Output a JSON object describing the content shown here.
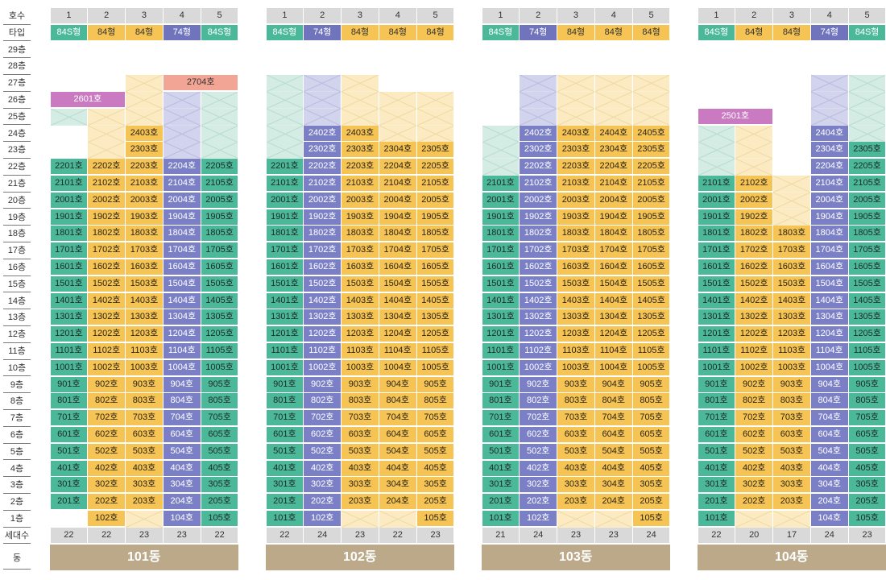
{
  "labels": {
    "header": "호수",
    "type": "타입",
    "floors": [
      "29층",
      "28층",
      "27층",
      "26층",
      "25층",
      "24층",
      "23층",
      "22층",
      "21층",
      "20층",
      "19층",
      "18층",
      "17층",
      "16층",
      "15층",
      "14층",
      "13층",
      "12층",
      "11층",
      "10층",
      "9층",
      "8층",
      "7층",
      "6층",
      "5층",
      "4층",
      "3층",
      "2층",
      "1층"
    ],
    "count": "세대수",
    "building": "동"
  },
  "colors": {
    "84S형": "#4cb89a",
    "84형": "#f6c454",
    "74형": "#6f74bc",
    "pink": "#c97ac1",
    "salmon": "#f2a594"
  },
  "units": [
    "1",
    "2",
    "3",
    "4",
    "5"
  ],
  "unit_suffix": "호",
  "buildings": [
    {
      "name": "101동",
      "types": [
        "84S형",
        "84형",
        "84형",
        "74형",
        "84S형"
      ],
      "counts": [
        "22",
        "22",
        "23",
        "23",
        "22"
      ],
      "columns": [
        {
          "top": 22,
          "bottom": 2,
          "void_from": 25,
          "void_to": 25,
          "special": [
            {
              "floor": 26,
              "text": "2601호",
              "color": "pink",
              "span": 2
            }
          ]
        },
        {
          "top": 22,
          "bottom": 1,
          "void_from": 23,
          "void_to": 25
        },
        {
          "top": 24,
          "bottom": 2,
          "void_from": 25,
          "void_to": 27,
          "void_bottom": [
            1
          ]
        },
        {
          "top": 22,
          "bottom": 1,
          "void_from": 23,
          "void_to": 26,
          "special": [
            {
              "floor": 27,
              "text": "2704호",
              "color": "salmon",
              "span": 2
            }
          ]
        },
        {
          "top": 22,
          "bottom": 1,
          "void_from": 23,
          "void_to": 26
        }
      ]
    },
    {
      "name": "102동",
      "types": [
        "84S형",
        "74형",
        "84형",
        "84형",
        "84형"
      ],
      "counts": [
        "22",
        "24",
        "23",
        "22",
        "23"
      ],
      "columns": [
        {
          "top": 22,
          "bottom": 1,
          "void_from": 23,
          "void_to": 27
        },
        {
          "top": 24,
          "bottom": 1,
          "void_from": 25,
          "void_to": 27
        },
        {
          "top": 24,
          "bottom": 2,
          "void_from": 25,
          "void_to": 27,
          "void_bottom": [
            1
          ]
        },
        {
          "top": 23,
          "bottom": 2,
          "void_from": 24,
          "void_to": 26,
          "void_bottom": [
            1
          ]
        },
        {
          "top": 23,
          "bottom": 1,
          "void_from": 24,
          "void_to": 26,
          "void_bottom": []
        }
      ]
    },
    {
      "name": "103동",
      "types": [
        "84S형",
        "74형",
        "84형",
        "84형",
        "84형"
      ],
      "counts": [
        "21",
        "24",
        "23",
        "23",
        "24"
      ],
      "columns": [
        {
          "top": 21,
          "bottom": 1,
          "void_from": 22,
          "void_to": 24
        },
        {
          "top": 24,
          "bottom": 1,
          "void_from": 25,
          "void_to": 27
        },
        {
          "top": 24,
          "bottom": 2,
          "void_from": 25,
          "void_to": 27,
          "void_bottom": [
            1
          ]
        },
        {
          "top": 24,
          "bottom": 2,
          "void_from": 25,
          "void_to": 27,
          "void_bottom": [
            1
          ]
        },
        {
          "top": 24,
          "bottom": 1,
          "void_from": 25,
          "void_to": 27
        }
      ]
    },
    {
      "name": "104동",
      "types": [
        "84S형",
        "84형",
        "84형",
        "74형",
        "84S형"
      ],
      "counts": [
        "22",
        "20",
        "17",
        "24",
        "23"
      ],
      "columns": [
        {
          "top": 21,
          "bottom": 1,
          "void_from": 22,
          "void_to": 24,
          "special": [
            {
              "floor": 25,
              "text": "2501호",
              "color": "pink",
              "span": 2
            }
          ]
        },
        {
          "top": 21,
          "bottom": 2,
          "void_from": 22,
          "void_to": 24,
          "void_bottom": [
            1
          ]
        },
        {
          "top": 18,
          "bottom": 2,
          "void_from": 19,
          "void_to": 21,
          "void_bottom": [
            1
          ]
        },
        {
          "top": 24,
          "bottom": 1,
          "void_from": 25,
          "void_to": 27
        },
        {
          "top": 23,
          "bottom": 1,
          "void_from": 24,
          "void_to": 27
        }
      ]
    }
  ]
}
